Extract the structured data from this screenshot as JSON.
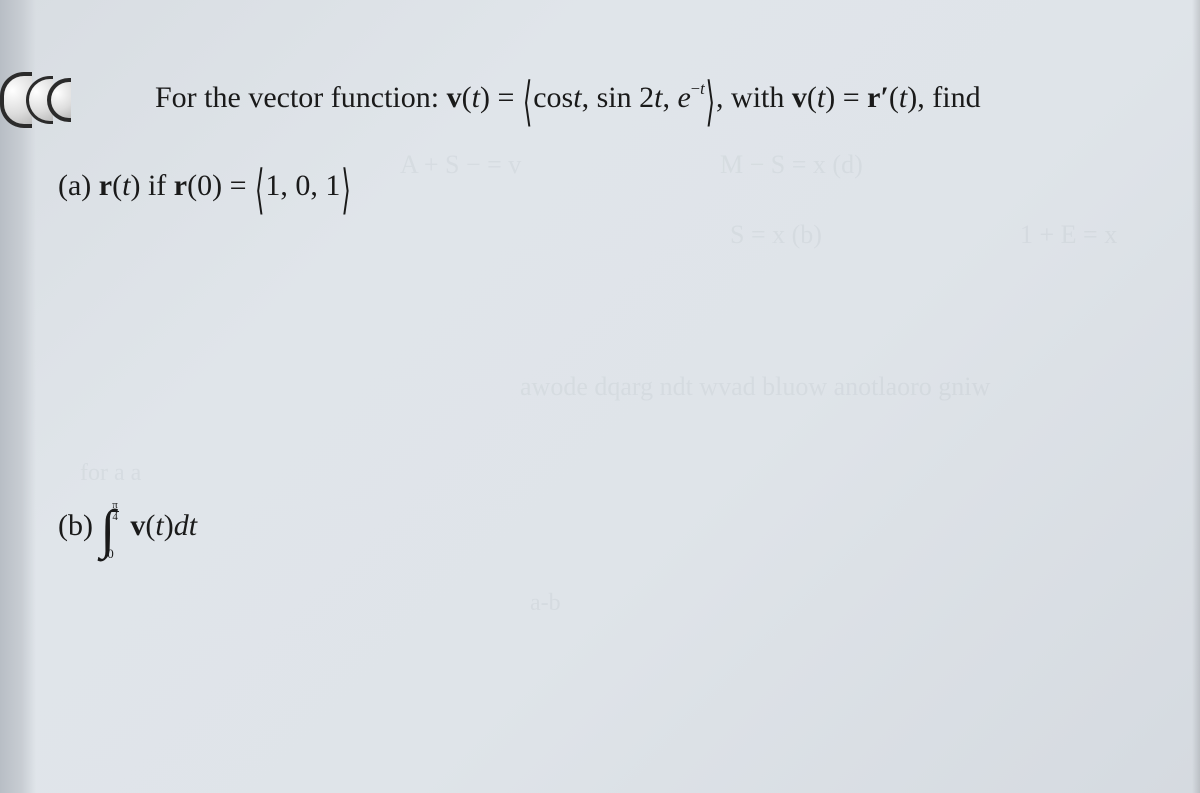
{
  "page": {
    "background_gradient": [
      "#d8dde2",
      "#e0e5ea",
      "#dfe4e9",
      "#d5dae0"
    ],
    "text_color": "#1a1a1a",
    "font_family": "Times New Roman",
    "base_fontsize_pt": 22
  },
  "problem": {
    "intro_prefix": "For the vector function: ",
    "v_label": "v",
    "t_var": "t",
    "equals": "=",
    "comp1": "cos",
    "comp2_prefix": "sin",
    "comp2_arg": "2",
    "comp3_base": "e",
    "comp3_exp_neg": "−",
    "with_text": ", with ",
    "rprime": "r′",
    "find_text": ", find"
  },
  "part_a": {
    "label": "(a) ",
    "r": "r",
    "if_text": " if ",
    "zero": "0",
    "ic_vec": "1, 0, 1"
  },
  "part_b": {
    "label": "(b) ",
    "int_lower": "0",
    "int_upper_num": "π",
    "int_upper_den": "4",
    "integrand_v": "v",
    "dt": "dt"
  },
  "ghost_text": {
    "g1": "A + S − = v",
    "g2": "M − S = x (d)",
    "g3": "S = x (b)",
    "g4": "1 + E = x",
    "g5": "awode dqarg ndt wvad bluow anotlaoro gniw",
    "g6": "for a       a",
    "g7": "a-b"
  }
}
